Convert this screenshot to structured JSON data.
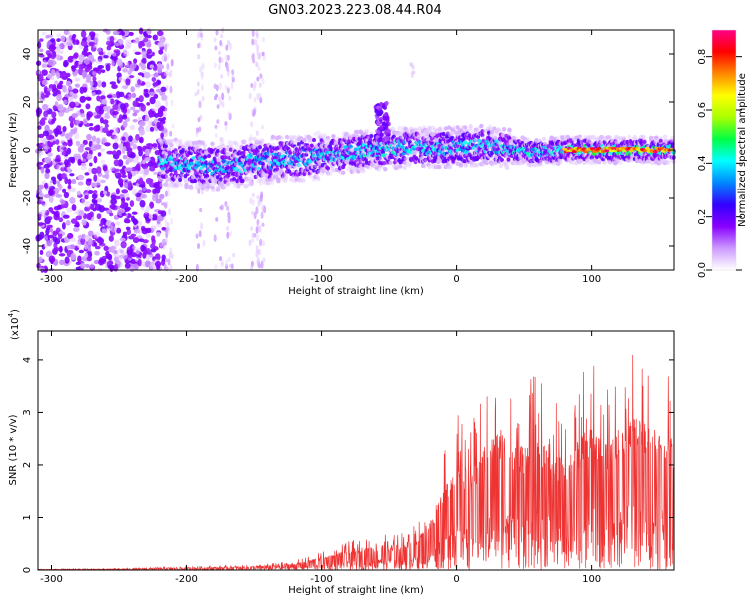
{
  "title": "GN03.2023.223.08.44.R04",
  "chart_data": [
    {
      "type": "heatmap",
      "xlabel": "Height of straight line (km)",
      "ylabel": "Frequency (Hz)",
      "xlim": [
        -310,
        161
      ],
      "ylim": [
        -50,
        50
      ],
      "x_ticks": [
        -300,
        -200,
        -100,
        0,
        100
      ],
      "x_tick_labels": [
        "-300",
        "-200",
        "-100",
        "0",
        "100"
      ],
      "y_ticks": [
        -40,
        -20,
        0,
        20,
        40
      ],
      "y_tick_labels": [
        "-40",
        "-20",
        "0",
        "20",
        "40"
      ],
      "ridge_center_hz": [
        [
          -215,
          -5
        ],
        [
          -200,
          -6
        ],
        [
          -180,
          -7
        ],
        [
          -160,
          -6
        ],
        [
          -150,
          -5
        ],
        [
          -130,
          -4
        ],
        [
          -110,
          -3
        ],
        [
          -100,
          -2
        ],
        [
          -90,
          -2
        ],
        [
          -80,
          -1
        ],
        [
          -60,
          0
        ],
        [
          -40,
          1
        ],
        [
          -20,
          1
        ],
        [
          0,
          1
        ],
        [
          20,
          2
        ],
        [
          40,
          0
        ],
        [
          60,
          -1
        ],
        [
          80,
          0
        ],
        [
          100,
          0
        ],
        [
          120,
          0
        ],
        [
          140,
          0
        ],
        [
          160,
          0
        ]
      ],
      "colorbar": {
        "label": "Normalized spectral amplitude",
        "range": [
          0,
          0.9
        ],
        "ticks": [
          0.0,
          0.2,
          0.4,
          0.6,
          0.8
        ],
        "tick_labels": [
          "0.0",
          "0.2",
          "0.4",
          "0.6",
          "0.8"
        ],
        "colors": [
          "#ffffff",
          "#cc99ff",
          "#8800ff",
          "#3300ff",
          "#0088ff",
          "#00ffff",
          "#00ff44",
          "#aaff00",
          "#ffff00",
          "#ff8800",
          "#ff0000",
          "#ff0088"
        ]
      },
      "grid": false
    },
    {
      "type": "line",
      "xlabel": "Height of straight line (km)",
      "ylabel": "SNR (10 * v/v)",
      "y_multiplier_label": "(x10",
      "y_multiplier_exp": "4",
      "y_multiplier_close": ")",
      "xlim": [
        -310,
        161
      ],
      "ylim": [
        0,
        4.55
      ],
      "x_ticks": [
        -300,
        -200,
        -100,
        0,
        100
      ],
      "x_tick_labels": [
        "-300",
        "-200",
        "-100",
        "0",
        "100"
      ],
      "y_ticks": [
        0,
        1,
        2,
        3,
        4
      ],
      "y_tick_labels": [
        "0",
        "1",
        "2",
        "3",
        "4"
      ],
      "color": "#ee3333",
      "envelope": {
        "x": [
          -310,
          -250,
          -200,
          -150,
          -120,
          -100,
          -80,
          -60,
          -40,
          -30,
          -20,
          -10,
          0,
          10,
          20,
          30,
          40,
          50,
          60,
          70,
          80,
          90,
          100,
          110,
          120,
          130,
          140,
          150,
          161
        ],
        "y": [
          0.02,
          0.03,
          0.07,
          0.1,
          0.18,
          0.35,
          0.55,
          0.65,
          0.75,
          0.9,
          1.3,
          2.2,
          3.1,
          2.8,
          3.4,
          4.0,
          3.6,
          3.5,
          3.9,
          3.3,
          3.0,
          3.6,
          4.1,
          3.5,
          3.8,
          4.4,
          4.2,
          3.8,
          3.7
        ]
      },
      "grid": false
    }
  ]
}
